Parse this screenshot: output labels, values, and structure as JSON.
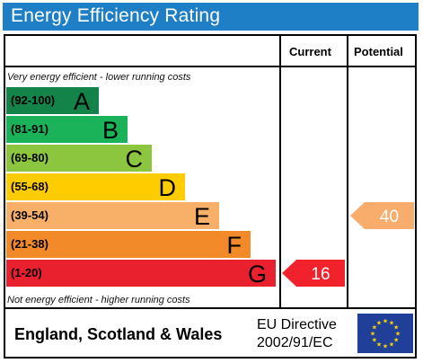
{
  "title": "Energy Efficiency Rating",
  "columns": {
    "current": "Current",
    "potential": "Potential"
  },
  "notes": {
    "top": "Very energy efficient - lower running costs",
    "bottom": "Not energy efficient - higher running costs"
  },
  "footer": {
    "country": "England, Scotland & Wales",
    "directive_line1": "EU Directive",
    "directive_line2": "2002/91/EC"
  },
  "colors": {
    "title_bar": "#1e7fc6",
    "eu_flag": "#1f3f99",
    "eu_stars": "#ffd500"
  },
  "chart_data": {
    "type": "bar",
    "title": "Energy Efficiency Rating",
    "bands": [
      {
        "letter": "A",
        "range": "(92-100)",
        "color": "#13834a"
      },
      {
        "letter": "B",
        "range": "(81-91)",
        "color": "#1bb35a"
      },
      {
        "letter": "C",
        "range": "(69-80)",
        "color": "#8cc63f"
      },
      {
        "letter": "D",
        "range": "(55-68)",
        "color": "#ffcc00"
      },
      {
        "letter": "E",
        "range": "(39-54)",
        "color": "#f8b068"
      },
      {
        "letter": "F",
        "range": "(21-38)",
        "color": "#f28a2a"
      },
      {
        "letter": "G",
        "range": "(1-20)",
        "color": "#e9202e"
      }
    ],
    "current": {
      "value": 16,
      "band": "G",
      "color": "#f2222d"
    },
    "potential": {
      "value": 40,
      "band": "E",
      "color": "#f9ad6c"
    }
  }
}
